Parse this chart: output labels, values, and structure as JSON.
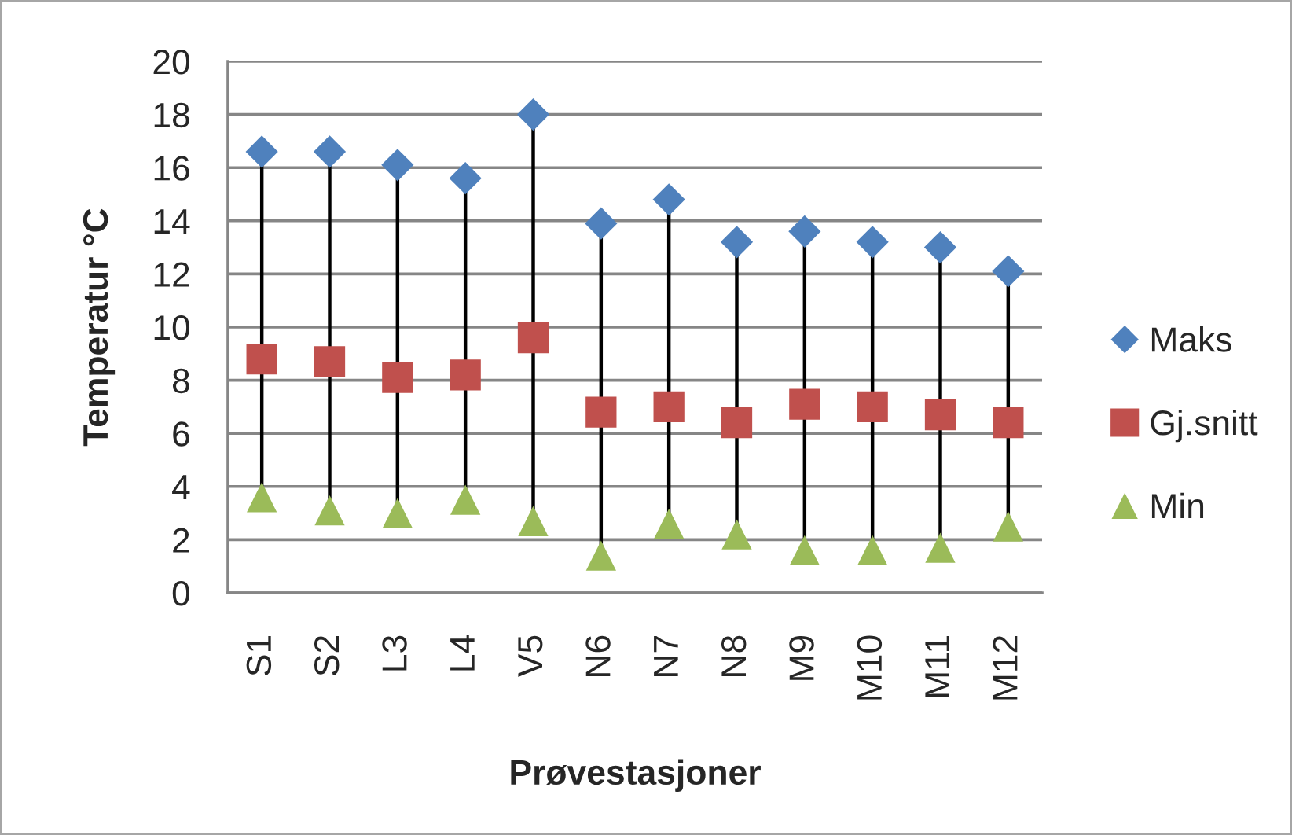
{
  "chart_data": {
    "type": "scatter",
    "xlabel": "Prøvestasjoner",
    "ylabel": "Temperatur °C",
    "categories": [
      "S1",
      "S2",
      "L3",
      "L4",
      "V5",
      "N6",
      "N7",
      "N8",
      "M9",
      "M10",
      "M11",
      "M12"
    ],
    "series": [
      {
        "name": "Maks",
        "color": "#4f81bd",
        "marker": "diamond",
        "values": [
          16.6,
          16.6,
          16.1,
          15.6,
          18.0,
          13.9,
          14.8,
          13.2,
          13.6,
          13.2,
          13.0,
          12.1
        ]
      },
      {
        "name": "Gj.snitt",
        "color": "#c0504d",
        "marker": "square",
        "values": [
          8.8,
          8.7,
          8.1,
          8.2,
          9.6,
          6.8,
          7.0,
          6.4,
          7.1,
          7.0,
          6.7,
          6.4
        ]
      },
      {
        "name": "Min",
        "color": "#9bbb59",
        "marker": "triangle",
        "values": [
          3.6,
          3.1,
          3.0,
          3.5,
          2.7,
          1.4,
          2.6,
          2.2,
          1.6,
          1.6,
          1.7,
          2.5
        ]
      }
    ],
    "ylim": [
      0,
      20
    ],
    "yticks": [
      0,
      2,
      4,
      6,
      8,
      10,
      12,
      14,
      16,
      18,
      20
    ],
    "grid": "y",
    "legend": "right"
  }
}
